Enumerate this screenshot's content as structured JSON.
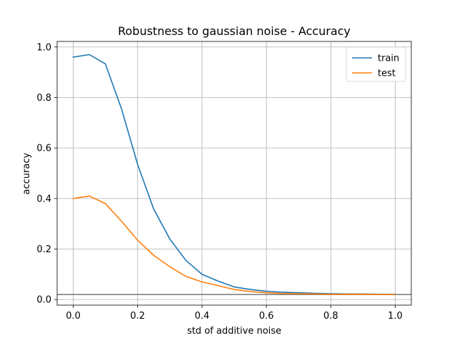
{
  "chart_data": {
    "type": "line",
    "title": "Robustness to gaussian noise - Accuracy",
    "xlabel": "std of additive noise",
    "ylabel": "accuracy",
    "xlim": [
      -0.05,
      1.05
    ],
    "ylim": [
      -0.022,
      1.022
    ],
    "x_ticks": [
      0.0,
      0.2,
      0.4,
      0.6,
      0.8,
      1.0
    ],
    "x_tick_labels": [
      "0.0",
      "0.2",
      "0.4",
      "0.6",
      "0.8",
      "1.0"
    ],
    "y_ticks": [
      0.0,
      0.2,
      0.4,
      0.6,
      0.8,
      1.0
    ],
    "y_tick_labels": [
      "0.0",
      "0.2",
      "0.4",
      "0.6",
      "0.8",
      "1.0"
    ],
    "grid": true,
    "legend_position": "top-right",
    "x": [
      0.0,
      0.05,
      0.1,
      0.15,
      0.2,
      0.25,
      0.3,
      0.35,
      0.4,
      0.45,
      0.5,
      0.55,
      0.6,
      0.65,
      0.7,
      0.75,
      0.8,
      0.85,
      0.9,
      0.95,
      1.0
    ],
    "series": [
      {
        "name": "train",
        "color": "#1f77b4",
        "values": [
          0.96,
          0.97,
          0.933,
          0.755,
          0.535,
          0.358,
          0.24,
          0.155,
          0.1,
          0.073,
          0.05,
          0.04,
          0.033,
          0.029,
          0.027,
          0.025,
          0.023,
          0.022,
          0.022,
          0.021,
          0.021
        ]
      },
      {
        "name": "test",
        "color": "#ff7f0e",
        "values": [
          0.4,
          0.41,
          0.38,
          0.31,
          0.235,
          0.175,
          0.13,
          0.092,
          0.07,
          0.055,
          0.04,
          0.032,
          0.027,
          0.024,
          0.023,
          0.022,
          0.021,
          0.021,
          0.021,
          0.02,
          0.02
        ]
      }
    ],
    "reference_line": {
      "y": 0.02,
      "color": "#808080"
    }
  }
}
